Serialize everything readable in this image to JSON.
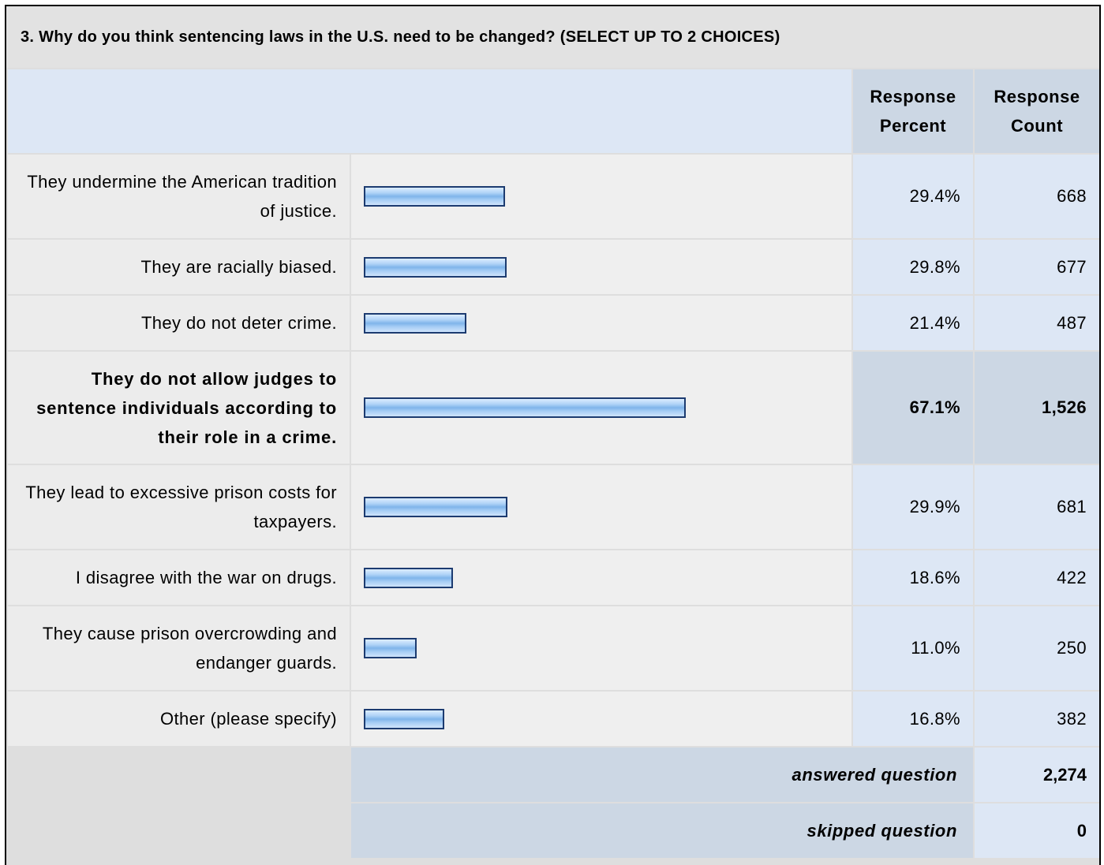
{
  "question_title": "3. Why do you think sentencing laws in the U.S. need to be changed? (SELECT UP TO 2 CHOICES)",
  "headers": {
    "percent": "Response Percent",
    "count": "Response Count"
  },
  "chart_data": {
    "type": "bar",
    "orientation": "horizontal",
    "title": "3. Why do you think sentencing laws in the U.S. need to be changed? (SELECT UP TO 2 CHOICES)",
    "xlim": [
      0,
      100
    ],
    "categories": [
      "They undermine the American tradition of justice.",
      "They are racially biased.",
      "They do not deter crime.",
      "They do not allow judges to sentence individuals according to their role in a crime.",
      "They lead to excessive prison costs for taxpayers.",
      "I disagree with the war on drugs.",
      "They cause prison overcrowding and endanger guards.",
      "Other (please specify)"
    ],
    "values": [
      29.4,
      29.8,
      21.4,
      67.1,
      29.9,
      18.6,
      11.0,
      16.8
    ],
    "percent_labels": [
      "29.4%",
      "29.8%",
      "21.4%",
      "67.1%",
      "29.9%",
      "18.6%",
      "11.0%",
      "16.8%"
    ],
    "counts": [
      "668",
      "677",
      "487",
      "1,526",
      "681",
      "422",
      "250",
      "382"
    ],
    "highlighted_index": 3,
    "bar_color": "#9cc8f2",
    "bar_border_color": "#1c3b70"
  },
  "summary": {
    "answered_label": "answered question",
    "answered_value": "2,274",
    "skipped_label": "skipped question",
    "skipped_value": "0"
  }
}
